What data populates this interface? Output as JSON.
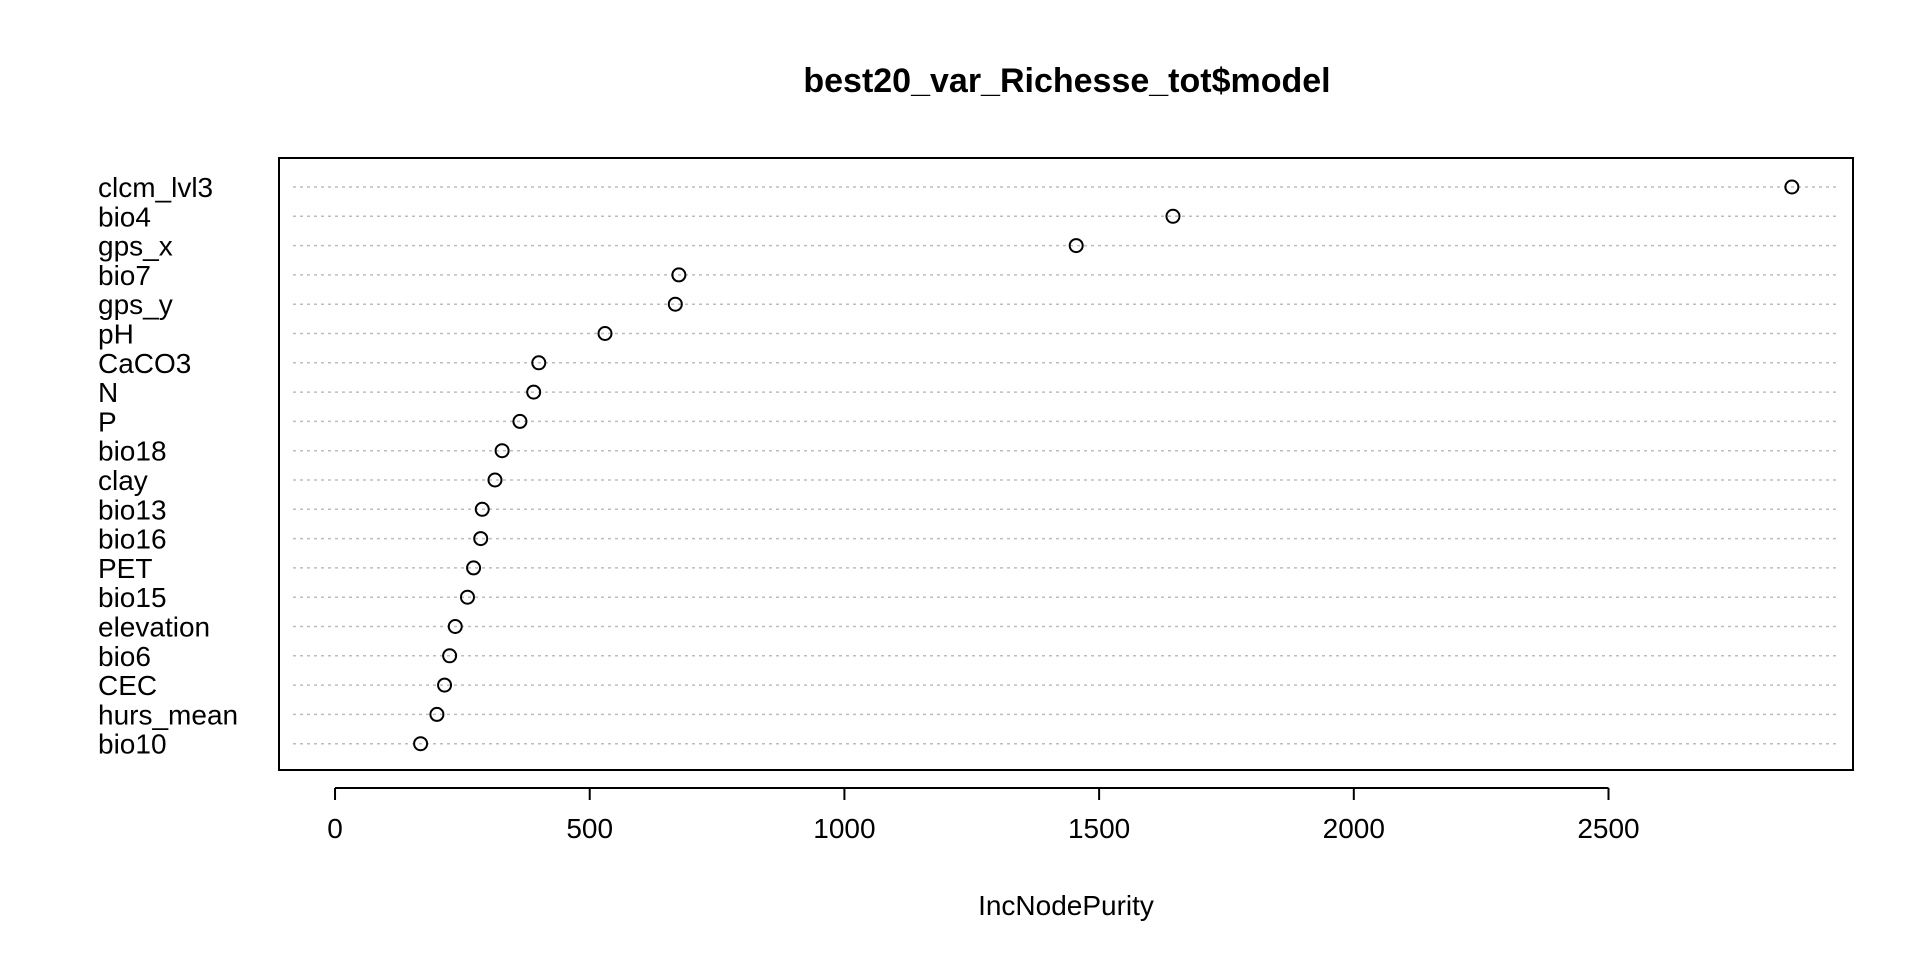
{
  "chart_data": {
    "type": "scatter",
    "title": "best20_var_Richesse_tot$model",
    "xlabel": "IncNodePurity",
    "ylabel": "",
    "xlim": [
      -110,
      2980
    ],
    "xticks": [
      0,
      500,
      1000,
      1500,
      2000,
      2500
    ],
    "xtick_labels": [
      "0",
      "500",
      "1000",
      "1500",
      "2000",
      "2500"
    ],
    "grid": "dotted horizontal guide lines",
    "categories": [
      "clcm_lvl3",
      "bio4",
      "gps_x",
      "bio7",
      "gps_y",
      "pH",
      "CaCO3",
      "N",
      "P",
      "bio18",
      "clay",
      "bio13",
      "bio16",
      "PET",
      "bio15",
      "elevation",
      "bio6",
      "CEC",
      "hurs_mean",
      "bio10"
    ],
    "values": [
      2860,
      1645,
      1455,
      675,
      668,
      530,
      400,
      390,
      363,
      328,
      314,
      289,
      286,
      272,
      260,
      236,
      225,
      215,
      200,
      168
    ],
    "marker": "open circle",
    "colors": {
      "point": "#000000",
      "grid": "#bdbdbd",
      "axis": "#000000"
    }
  }
}
